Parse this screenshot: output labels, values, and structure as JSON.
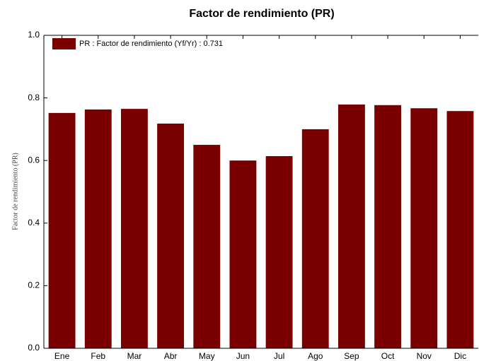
{
  "chart_data": {
    "type": "bar",
    "title": "Factor de rendimiento (PR)",
    "y_label": "Factor de rendimiento (PR)",
    "categories": [
      "Ene",
      "Feb",
      "Mar",
      "Abr",
      "May",
      "Jun",
      "Jul",
      "Ago",
      "Sep",
      "Oct",
      "Nov",
      "Dic"
    ],
    "series": [
      {
        "name": "PR : Factor de rendimiento (Yf/Yr) :  0.731",
        "color": "#7a0000",
        "values": [
          0.752,
          0.763,
          0.765,
          0.718,
          0.65,
          0.6,
          0.614,
          0.7,
          0.779,
          0.777,
          0.767,
          0.758
        ]
      }
    ],
    "ylim": [
      0,
      1
    ],
    "yticks": [
      {
        "value": 0,
        "label": "0.0"
      },
      0.2,
      0.4,
      0.6,
      0.8,
      {
        "value": 1,
        "label": "1.0"
      }
    ],
    "grid": false,
    "legend": "top-left"
  }
}
